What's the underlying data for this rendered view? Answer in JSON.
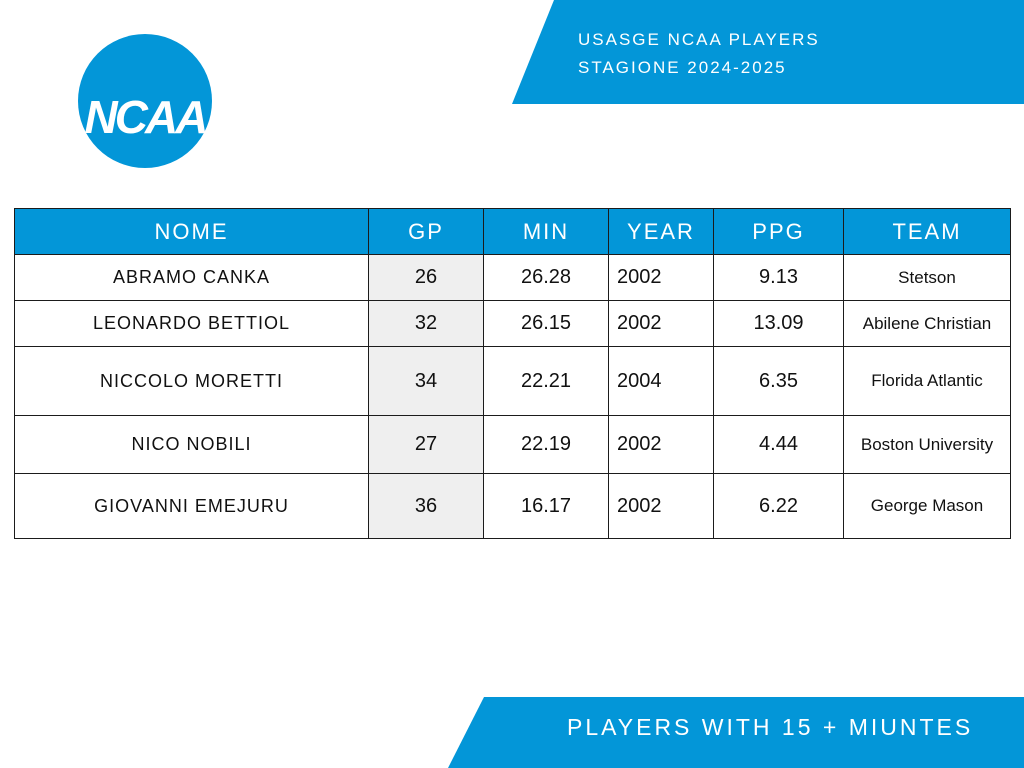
{
  "header": {
    "line1": "USASGE NCAA PLAYERS",
    "line2": "STAGIONE 2024-2025"
  },
  "logo": {
    "text": "NCAA",
    "color": "#0396d8"
  },
  "table": {
    "columns": [
      "NOME",
      "GP",
      "MIN",
      "YEAR",
      "PPG",
      "TEAM"
    ],
    "rows": [
      [
        "ABRAMO CANKA",
        "26",
        "26.28",
        "2002",
        "9.13",
        "Stetson"
      ],
      [
        "LEONARDO BETTIOL",
        "32",
        "26.15",
        "2002",
        "13.09",
        "Abilene Christian"
      ],
      [
        "NICCOLO MORETTI",
        "34",
        "22.21",
        "2004",
        "6.35",
        "Florida Atlantic"
      ],
      [
        "NICO NOBILI",
        "27",
        "22.19",
        "2002",
        "4.44",
        "Boston University"
      ],
      [
        "GIOVANNI EMEJURU",
        "36",
        "16.17",
        "2002",
        "6.22",
        "George Mason"
      ]
    ]
  },
  "footer": {
    "text": "PLAYERS WITH 15 + MIUNTES"
  },
  "colors": {
    "accent": "#0396d8",
    "gp_cell": "#efefef"
  }
}
